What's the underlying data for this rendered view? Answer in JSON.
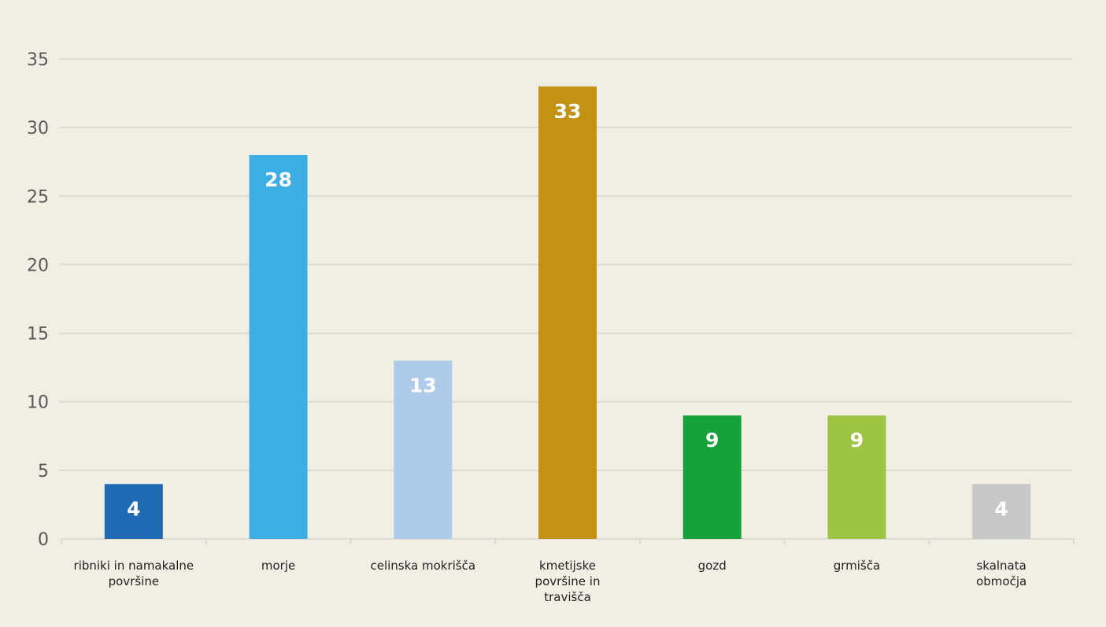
{
  "chart_data": {
    "type": "bar",
    "title": "",
    "xlabel": "",
    "ylabel": "",
    "ylim": [
      0,
      35
    ],
    "yticks": [
      "0",
      "5",
      "10",
      "15",
      "20",
      "25",
      "30",
      "35"
    ],
    "grid": true,
    "legend": "none",
    "categories": [
      [
        "ribniki in namakalne",
        "površine"
      ],
      [
        "morje"
      ],
      [
        "celinska mokrišča"
      ],
      [
        "kmetijske",
        "površine in",
        "travišča"
      ],
      [
        "gozd"
      ],
      [
        "grmišča"
      ],
      [
        "skalnata",
        "območja"
      ]
    ],
    "values": [
      4,
      28,
      13,
      33,
      9,
      9,
      4
    ],
    "data_labels": [
      "4",
      "28",
      "13",
      "33",
      "9",
      "9",
      "4"
    ],
    "colors": [
      "#1e6bb4",
      "#3daee4",
      "#aecbea",
      "#c49212",
      "#15a23a",
      "#9dc543",
      "#c8c8c8"
    ]
  }
}
